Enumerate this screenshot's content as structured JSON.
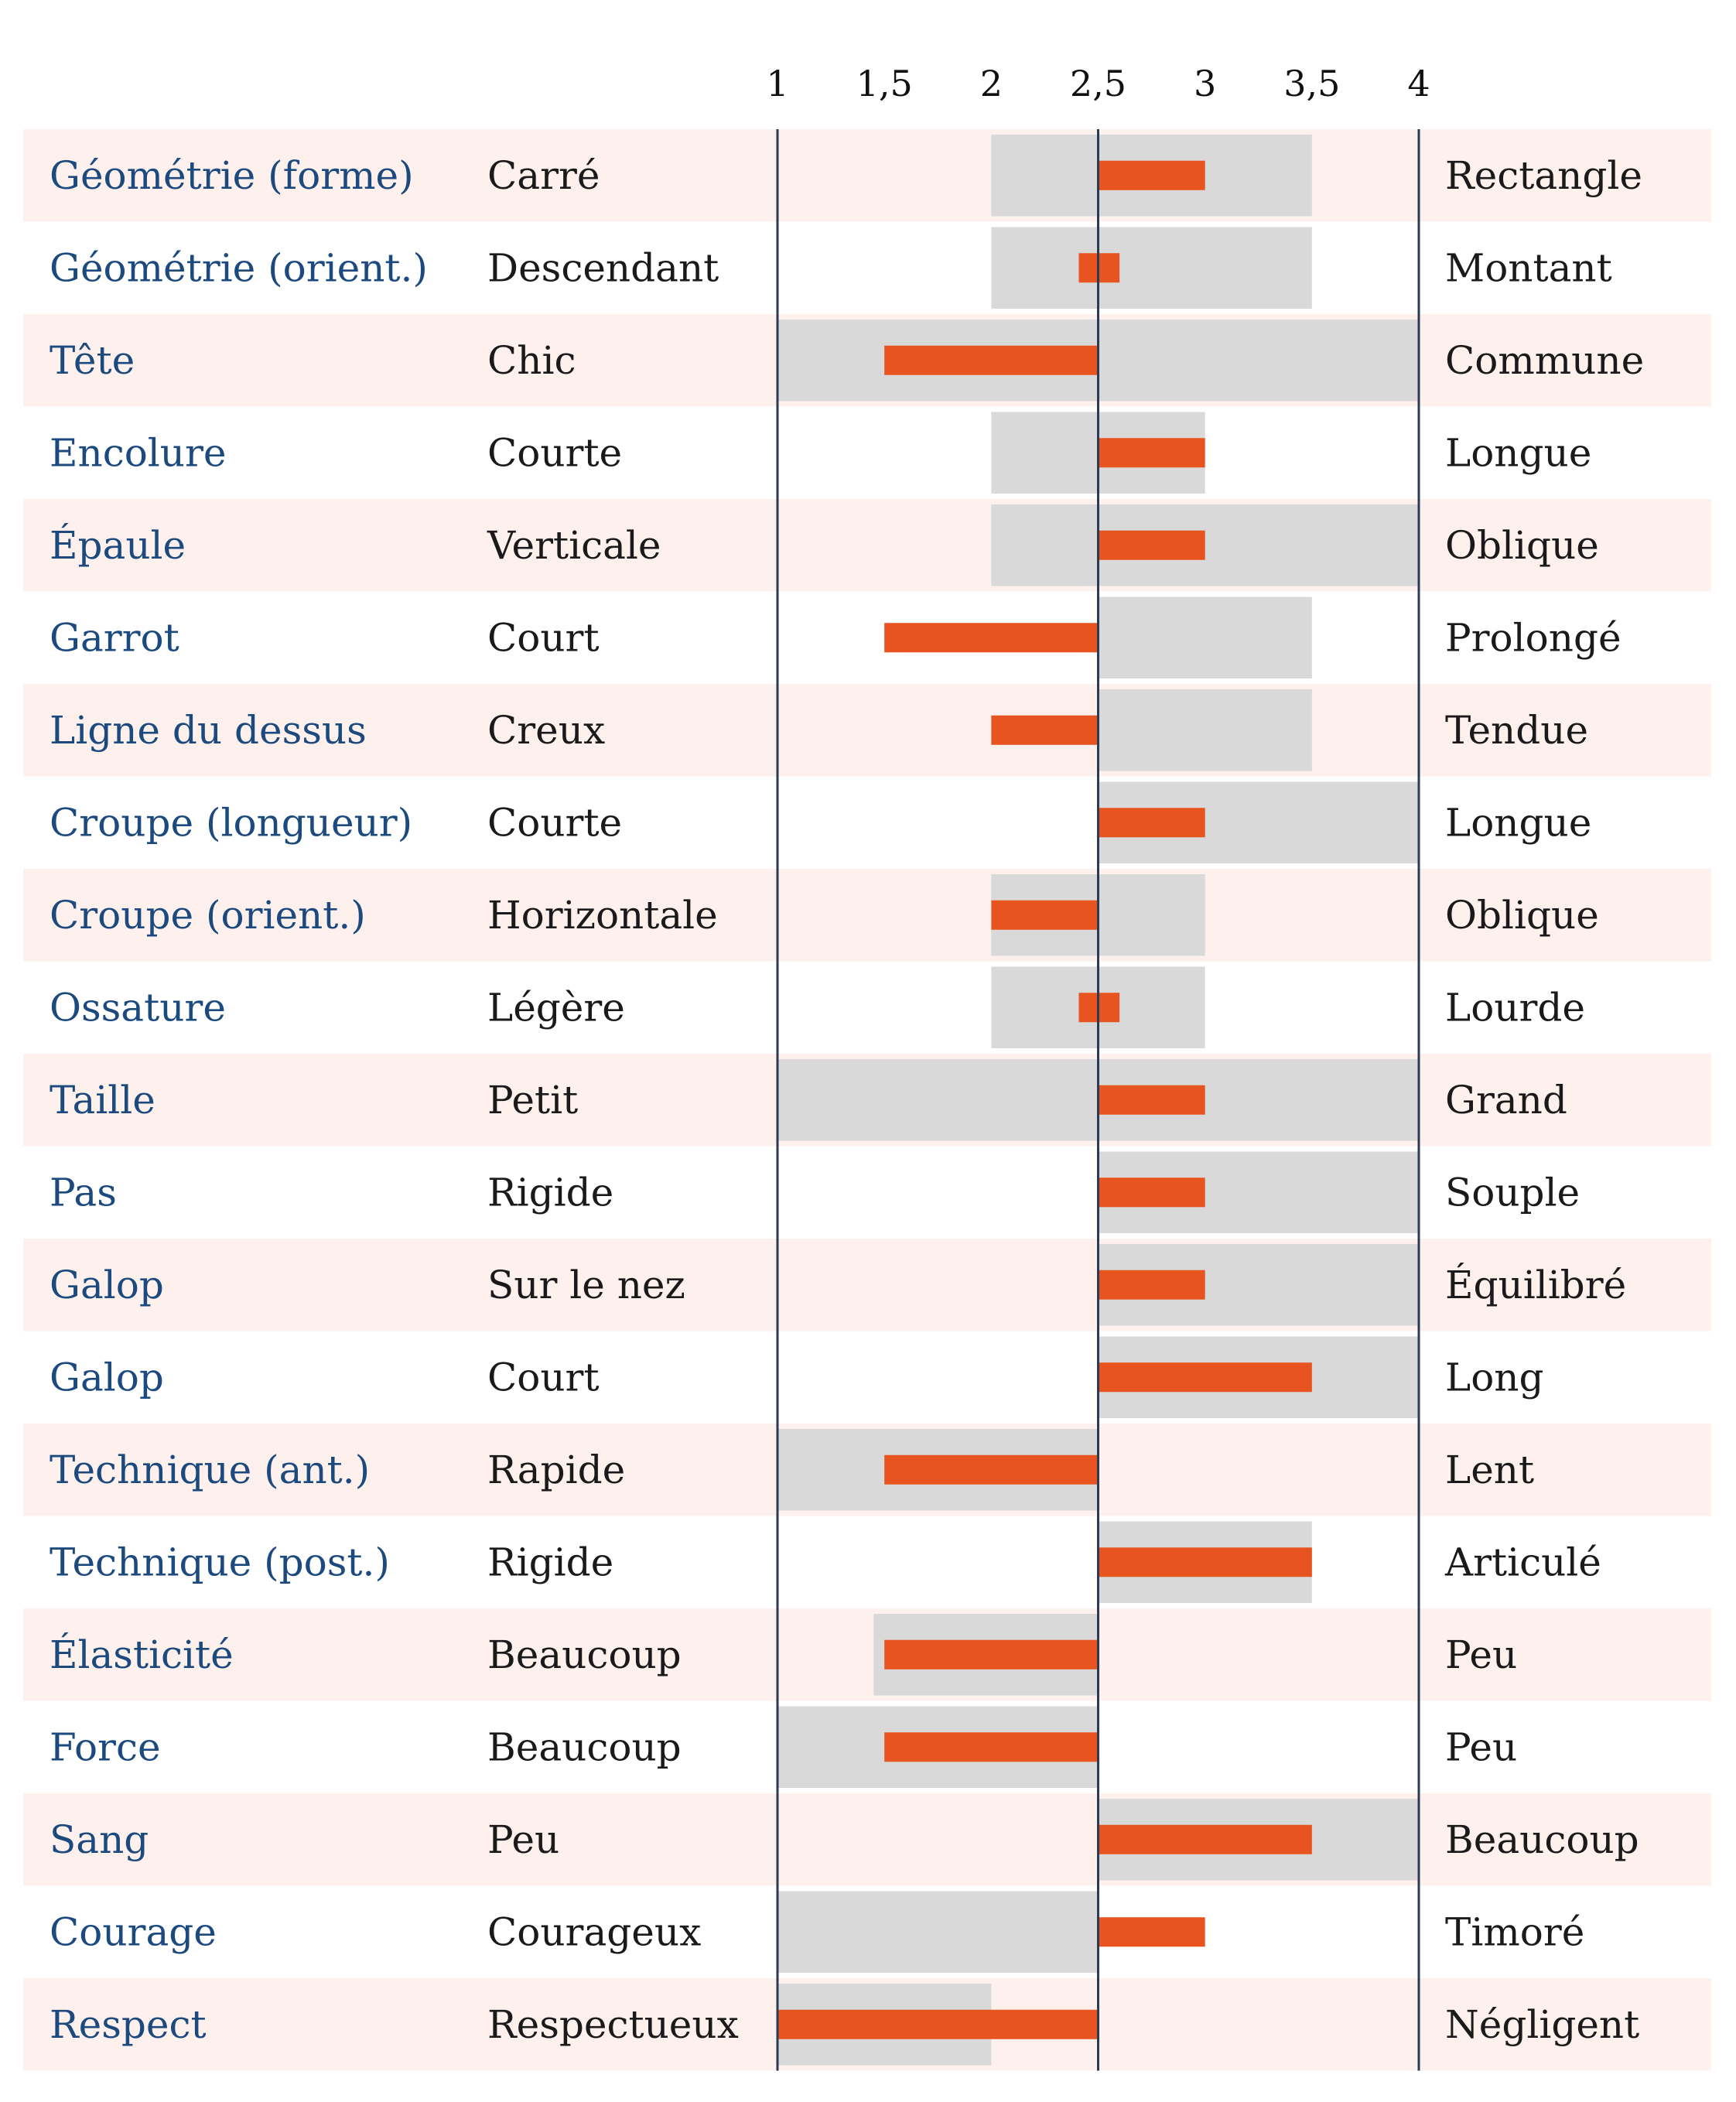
{
  "chart_data": {
    "type": "bar",
    "orientation": "horizontal",
    "title": "",
    "xlabel": "",
    "ylabel": "",
    "xlim": [
      1,
      4
    ],
    "ticks": [
      {
        "value": 1,
        "label": "1"
      },
      {
        "value": 1.5,
        "label": "1,5"
      },
      {
        "value": 2,
        "label": "2"
      },
      {
        "value": 2.5,
        "label": "2,5"
      },
      {
        "value": 3,
        "label": "3"
      },
      {
        "value": 3.5,
        "label": "3,5"
      },
      {
        "value": 4,
        "label": "4"
      }
    ],
    "baseline": 2.5,
    "colors": {
      "trait_label": "#1c4a7e",
      "text": "#1a1a1a",
      "band_odd": "#fdf0ed",
      "range": "#d9d9d9",
      "value_bar": "#e8541f",
      "axis_line": "#2b3a55"
    },
    "rows": [
      {
        "trait": "Géométrie (forme)",
        "low": "Carré",
        "high": "Rectangle",
        "range": [
          2,
          3.5
        ],
        "value": 3
      },
      {
        "trait": "Géométrie (orient.)",
        "low": "Descendant",
        "high": "Montant",
        "range": [
          2,
          3.5
        ],
        "value": 2.6
      },
      {
        "trait": "Tête",
        "low": "Chic",
        "high": "Commune",
        "range": [
          1,
          4
        ],
        "value": 1.5
      },
      {
        "trait": "Encolure",
        "low": "Courte",
        "high": "Longue",
        "range": [
          2,
          3
        ],
        "value": 3
      },
      {
        "trait": "Épaule",
        "low": "Verticale",
        "high": "Oblique",
        "range": [
          2,
          4
        ],
        "value": 3
      },
      {
        "trait": "Garrot",
        "low": "Court",
        "high": "Prolongé",
        "range": [
          2.5,
          3.5
        ],
        "value": 1.5
      },
      {
        "trait": "Ligne du dessus",
        "low": "Creux",
        "high": "Tendue",
        "range": [
          2.5,
          3.5
        ],
        "value": 2
      },
      {
        "trait": "Croupe (longueur)",
        "low": "Courte",
        "high": "Longue",
        "range": [
          2.5,
          4
        ],
        "value": 3
      },
      {
        "trait": "Croupe (orient.)",
        "low": "Horizontale",
        "high": "Oblique",
        "range": [
          2,
          3
        ],
        "value": 2
      },
      {
        "trait": "Ossature",
        "low": "Légère",
        "high": "Lourde",
        "range": [
          2,
          3
        ],
        "value": 2.6
      },
      {
        "trait": "Taille",
        "low": "Petit",
        "high": "Grand",
        "range": [
          1,
          4
        ],
        "value": 3
      },
      {
        "trait": "Pas",
        "low": "Rigide",
        "high": "Souple",
        "range": [
          2.5,
          4
        ],
        "value": 3
      },
      {
        "trait": "Galop",
        "low": "Sur le nez",
        "high": "Équilibré",
        "range": [
          2.5,
          4
        ],
        "value": 3
      },
      {
        "trait": "Galop",
        "low": "Court",
        "high": "Long",
        "range": [
          2.5,
          4
        ],
        "value": 3.5
      },
      {
        "trait": "Technique (ant.)",
        "low": "Rapide",
        "high": "Lent",
        "range": [
          1,
          2.5
        ],
        "value": 1.5
      },
      {
        "trait": "Technique (post.)",
        "low": "Rigide",
        "high": "Articulé",
        "range": [
          2.5,
          3.5
        ],
        "value": 3.5
      },
      {
        "trait": "Élasticité",
        "low": "Beaucoup",
        "high": "Peu",
        "range": [
          1.45,
          2.5
        ],
        "value": 1.5
      },
      {
        "trait": "Force",
        "low": "Beaucoup",
        "high": "Peu",
        "range": [
          1,
          2.5
        ],
        "value": 1.5
      },
      {
        "trait": "Sang",
        "low": "Peu",
        "high": "Beaucoup",
        "range": [
          2.5,
          4
        ],
        "value": 3.5
      },
      {
        "trait": "Courage",
        "low": "Courageux",
        "high": "Timoré",
        "range": [
          1,
          2.5
        ],
        "value": 3
      },
      {
        "trait": "Respect",
        "low": "Respectueux",
        "high": "Négligent",
        "range": [
          1,
          2
        ],
        "value": 1
      }
    ]
  }
}
